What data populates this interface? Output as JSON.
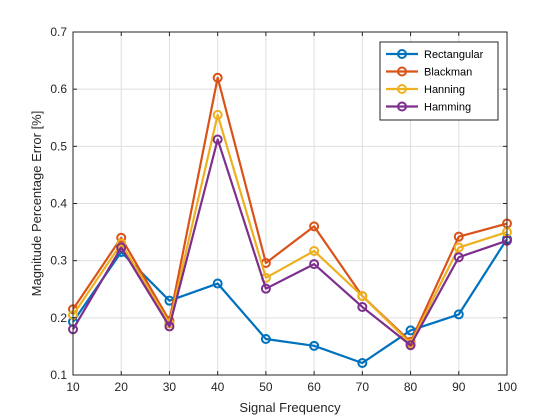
{
  "chart_data": {
    "type": "line",
    "title": "",
    "xlabel": "Signal Frequency",
    "ylabel": "Magnitude Percentage Error [%]",
    "x": [
      10,
      20,
      30,
      40,
      50,
      60,
      70,
      80,
      90,
      100
    ],
    "xlim": [
      10,
      100
    ],
    "ylim": [
      0.1,
      0.7
    ],
    "xticks": [
      "10",
      "20",
      "30",
      "40",
      "50",
      "60",
      "70",
      "80",
      "90",
      "100"
    ],
    "yticks": [
      "0.1",
      "0.2",
      "0.3",
      "0.4",
      "0.5",
      "0.6",
      "0.7"
    ],
    "grid": true,
    "legend_position": "top-right",
    "marker": "circle",
    "series": [
      {
        "name": "Rectangular",
        "color": "#0072BD",
        "values": [
          0.193,
          0.315,
          0.23,
          0.26,
          0.163,
          0.151,
          0.121,
          0.178,
          0.206,
          0.338
        ]
      },
      {
        "name": "Blackman",
        "color": "#D95319",
        "values": [
          0.215,
          0.34,
          0.195,
          0.62,
          0.296,
          0.36,
          0.238,
          0.158,
          0.342,
          0.365
        ]
      },
      {
        "name": "Hanning",
        "color": "#EDB120",
        "values": [
          0.205,
          0.33,
          0.19,
          0.555,
          0.27,
          0.317,
          0.238,
          0.155,
          0.323,
          0.35
        ]
      },
      {
        "name": "Hamming",
        "color": "#7E2F8E",
        "values": [
          0.18,
          0.323,
          0.185,
          0.512,
          0.251,
          0.294,
          0.219,
          0.152,
          0.306,
          0.335
        ]
      }
    ]
  }
}
